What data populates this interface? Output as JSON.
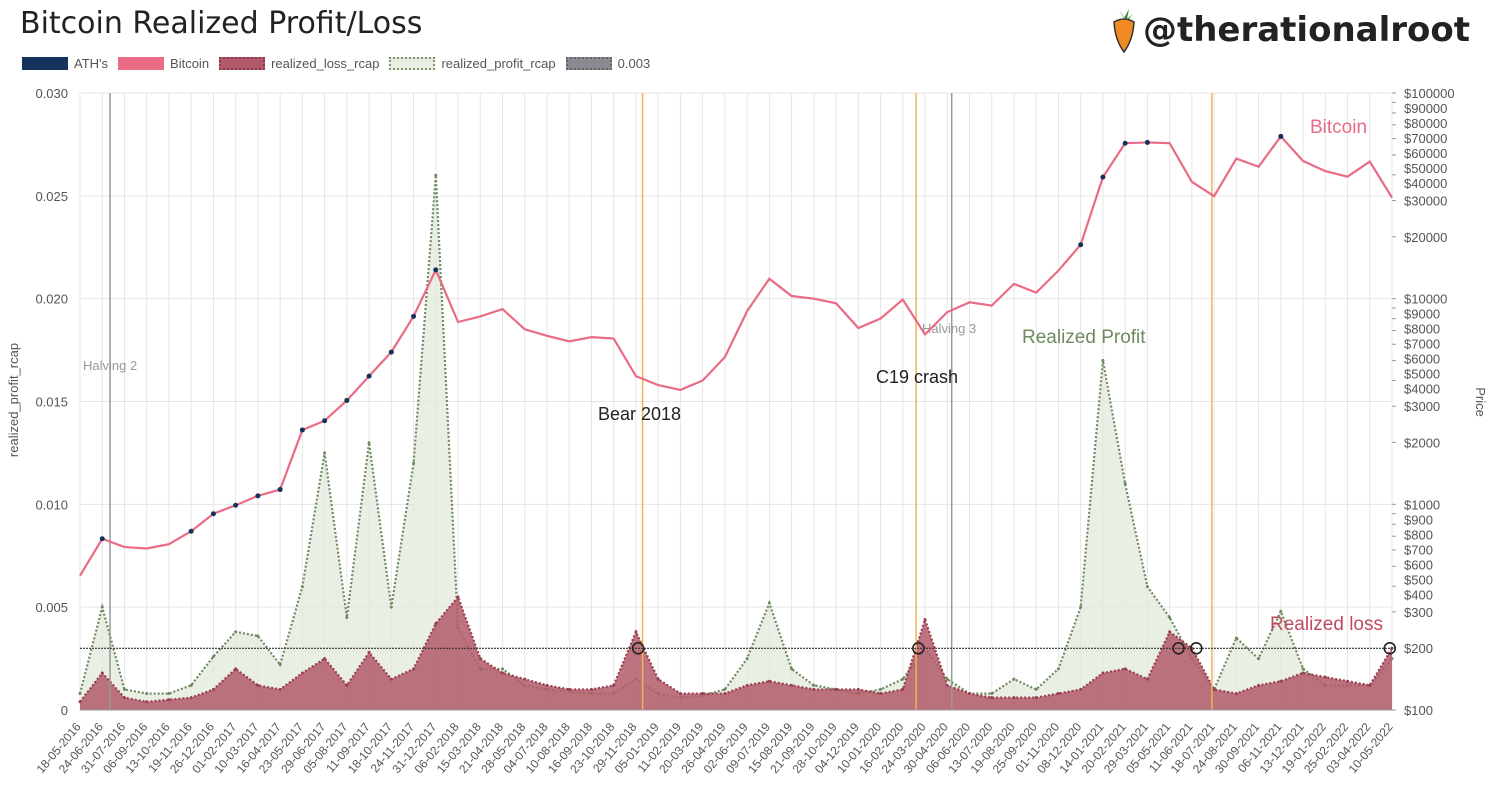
{
  "header": {
    "title": "Bitcoin Realized Profit/Loss",
    "brand": "@therationalroot",
    "brand_icon": "carrot-icon"
  },
  "legend": [
    {
      "label": "ATH's",
      "color": "#14325c",
      "style": "solid"
    },
    {
      "label": "Bitcoin",
      "color": "#e96b84",
      "style": "solid"
    },
    {
      "label": "realized_loss_rcap",
      "color": "#b35a6a",
      "style": "dotted"
    },
    {
      "label": "realized_profit_rcap",
      "color": "#e8eee4",
      "style": "dotted"
    },
    {
      "label": "0.003",
      "color": "#8a8a92",
      "style": "dotted"
    }
  ],
  "chart_data": {
    "type": "line",
    "title": "Bitcoin Realized Profit/Loss",
    "xlabel": "",
    "ylabel": "realized_profit_rcap",
    "y2label": "Price",
    "ylim": [
      0,
      0.03
    ],
    "yticks": [
      "0",
      "0.005",
      "0.010",
      "0.015",
      "0.020",
      "0.025",
      "0.030"
    ],
    "y2lim": [
      100,
      100000
    ],
    "y2scale": "log",
    "y2ticks": [
      "$100000",
      "$90000",
      "$80000",
      "$70000",
      "$60000",
      "$50000",
      "$40000",
      "$30000",
      "$20000",
      "$10000",
      "$9000",
      "$8000",
      "$7000",
      "$6000",
      "$5000",
      "$4000",
      "$3000",
      "$2000",
      "$1000",
      "$900",
      "$800",
      "$700",
      "$600",
      "$500",
      "$400",
      "$300",
      "$200",
      "$100"
    ],
    "y2tick_values": [
      100000,
      90000,
      80000,
      70000,
      60000,
      50000,
      40000,
      30000,
      20000,
      10000,
      9000,
      8000,
      7000,
      6000,
      5000,
      4000,
      3000,
      2000,
      1000,
      900,
      800,
      700,
      600,
      500,
      400,
      300,
      200,
      100
    ],
    "grid": true,
    "legend_position": "top-left",
    "categories": [
      "18-05-2016",
      "24-06-2016",
      "31-07-2016",
      "06-09-2016",
      "13-10-2016",
      "19-11-2016",
      "26-12-2016",
      "01-02-2017",
      "10-03-2017",
      "16-04-2017",
      "23-05-2017",
      "29-06-2017",
      "05-08-2017",
      "11-09-2017",
      "18-10-2017",
      "24-11-2017",
      "31-12-2017",
      "06-02-2018",
      "15-03-2018",
      "21-04-2018",
      "28-05-2018",
      "04-07-2018",
      "10-08-2018",
      "16-09-2018",
      "23-10-2018",
      "29-11-2018",
      "05-01-2019",
      "11-02-2019",
      "20-03-2019",
      "26-04-2019",
      "02-06-2019",
      "09-07-2019",
      "15-08-2019",
      "21-09-2019",
      "28-10-2019",
      "04-12-2019",
      "10-01-2020",
      "16-02-2020",
      "24-03-2020",
      "30-04-2020",
      "06-06-2020",
      "13-07-2020",
      "19-08-2020",
      "25-09-2020",
      "01-11-2020",
      "08-12-2020",
      "14-01-2021",
      "20-02-2021",
      "29-03-2021",
      "05-05-2021",
      "11-06-2021",
      "18-07-2021",
      "24-08-2021",
      "30-09-2021",
      "06-11-2021",
      "13-12-2021",
      "19-01-2022",
      "25-02-2022",
      "03-04-2022",
      "10-05-2022"
    ],
    "series": [
      {
        "name": "Bitcoin",
        "axis": "right",
        "color": "#e96b84",
        "values": [
          450,
          680,
          620,
          610,
          640,
          740,
          900,
          990,
          1100,
          1180,
          2300,
          2550,
          3200,
          4200,
          5500,
          8200,
          13800,
          7700,
          8200,
          8900,
          7100,
          6600,
          6200,
          6500,
          6400,
          4200,
          3800,
          3600,
          4000,
          5200,
          8700,
          12500,
          10300,
          10000,
          9500,
          7200,
          8000,
          9900,
          6700,
          8600,
          9600,
          9250,
          11800,
          10700,
          13700,
          18300,
          39000,
          57000,
          57500,
          57000,
          37000,
          31500,
          48000,
          43800,
          61500,
          46700,
          41700,
          39200,
          46400,
          31000
        ]
      },
      {
        "name": "realized_profit_rcap",
        "axis": "left",
        "color": "#6f8a5f",
        "values": [
          0.0008,
          0.005,
          0.001,
          0.0008,
          0.0008,
          0.0012,
          0.0026,
          0.0038,
          0.0036,
          0.0022,
          0.006,
          0.0125,
          0.0045,
          0.013,
          0.005,
          0.012,
          0.026,
          0.004,
          0.002,
          0.002,
          0.0012,
          0.001,
          0.0009,
          0.0008,
          0.0008,
          0.0015,
          0.0008,
          0.0006,
          0.0007,
          0.001,
          0.0025,
          0.0052,
          0.002,
          0.0012,
          0.001,
          0.0008,
          0.001,
          0.0015,
          0.003,
          0.0015,
          0.0008,
          0.0008,
          0.0015,
          0.001,
          0.002,
          0.005,
          0.017,
          0.011,
          0.006,
          0.0045,
          0.0025,
          0.001,
          0.0035,
          0.0025,
          0.0048,
          0.002,
          0.0012,
          0.0012,
          0.0012,
          0.0025
        ]
      },
      {
        "name": "realized_loss_rcap",
        "axis": "left",
        "color": "#b35a6a",
        "values": [
          0.0004,
          0.0018,
          0.0006,
          0.0004,
          0.0005,
          0.0006,
          0.001,
          0.002,
          0.0012,
          0.001,
          0.0018,
          0.0025,
          0.0012,
          0.0028,
          0.0015,
          0.002,
          0.0042,
          0.0055,
          0.0025,
          0.0018,
          0.0015,
          0.0012,
          0.001,
          0.001,
          0.0012,
          0.0038,
          0.0015,
          0.0008,
          0.0008,
          0.0008,
          0.0012,
          0.0014,
          0.0012,
          0.001,
          0.001,
          0.001,
          0.0008,
          0.001,
          0.0044,
          0.0012,
          0.0008,
          0.0006,
          0.0006,
          0.0006,
          0.0008,
          0.001,
          0.0018,
          0.002,
          0.0015,
          0.0038,
          0.003,
          0.001,
          0.0008,
          0.0012,
          0.0014,
          0.0018,
          0.0016,
          0.0014,
          0.0012,
          0.003
        ]
      },
      {
        "name": "0.003",
        "axis": "left",
        "color": "#333333",
        "constant": 0.003
      }
    ],
    "annotations": [
      {
        "text": "Halving 2",
        "x": 1.35,
        "color": "#999999"
      },
      {
        "text": "Bear 2018",
        "x": 25.3,
        "color": "#f0b35a"
      },
      {
        "text": "C19 crash",
        "x": 37.6,
        "color": "#f0b35a"
      },
      {
        "text": "Halving 3",
        "x": 39.2,
        "color": "#999999"
      },
      {
        "text": "",
        "x": 50.9,
        "color": "#f0b35a"
      }
    ],
    "labels": [
      "Bitcoin",
      "Realized Profit",
      "Realized loss"
    ],
    "crossings": [
      25.1,
      37.7,
      49.4,
      50.2,
      58.9
    ]
  }
}
